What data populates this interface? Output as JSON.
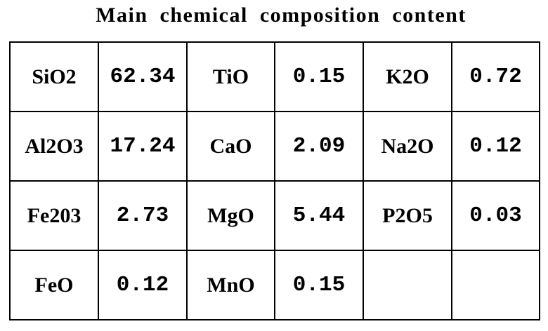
{
  "title": "Main  chemical  composition  content",
  "table": {
    "rows": [
      [
        {
          "name": "SiO2",
          "value": "62.34"
        },
        {
          "name": "TiO",
          "value": "0.15"
        },
        {
          "name": "K2O",
          "value": "0.72"
        }
      ],
      [
        {
          "name": "Al2O3",
          "value": "17.24"
        },
        {
          "name": "CaO",
          "value": "2.09"
        },
        {
          "name": "Na2O",
          "value": "0.12"
        }
      ],
      [
        {
          "name": "Fe203",
          "value": "2.73"
        },
        {
          "name": "MgO",
          "value": "5.44"
        },
        {
          "name": "P2O5",
          "value": "0.03"
        }
      ],
      [
        {
          "name": "FeO",
          "value": "0.12"
        },
        {
          "name": "MnO",
          "value": "0.15"
        },
        {
          "name": "",
          "value": ""
        }
      ]
    ]
  }
}
